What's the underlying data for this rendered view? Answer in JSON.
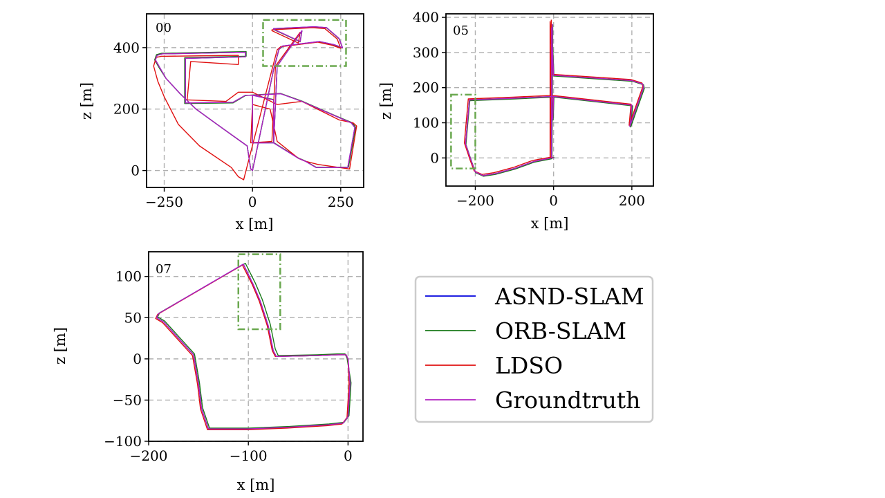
{
  "figure": {
    "legend": [
      {
        "name": "ASND-SLAM",
        "color": "#0000dd"
      },
      {
        "name": "ORB-SLAM",
        "color": "#1a7a1a"
      },
      {
        "name": "LDSO",
        "color": "#e01010"
      },
      {
        "name": "Groundtruth",
        "color": "#b020c0"
      }
    ],
    "roi_color": "#6aa84f"
  },
  "chart_data": [
    {
      "type": "line",
      "id": "00",
      "title": "00",
      "xlabel": "x [m]",
      "ylabel": "z [m]",
      "xlim": [
        -300,
        315
      ],
      "ylim": [
        -55,
        510
      ],
      "xticks": [
        -250,
        0,
        250
      ],
      "yticks": [
        0,
        200,
        400
      ],
      "xtick_labels": [
        "−250",
        "0",
        "250"
      ],
      "ytick_labels": [
        "0",
        "200",
        "400"
      ],
      "grid": true,
      "roi": {
        "x": [
          30,
          265
        ],
        "y": [
          340,
          490
        ]
      },
      "series": [
        {
          "name": "ASND-SLAM",
          "x": [
            0,
            -5,
            -15,
            -100,
            -160,
            -205,
            -245,
            -260,
            -275,
            -270,
            -255,
            -240,
            -20,
            -20,
            -190,
            -190,
            -55,
            -20,
            0,
            80,
            140,
            240,
            280,
            290,
            270,
            180,
            150,
            130,
            60,
            60,
            0,
            0,
            60,
            70,
            140,
            135,
            60,
            60,
            175,
            210,
            245,
            255,
            230,
            190,
            85,
            75,
            60,
            0
          ],
          "y": [
            0,
            5,
            80,
            150,
            200,
            250,
            300,
            330,
            360,
            375,
            380,
            380,
            385,
            370,
            365,
            220,
            222,
            245,
            245,
            250,
            225,
            175,
            155,
            140,
            10,
            10,
            30,
            40,
            90,
            230,
            245,
            90,
            90,
            340,
            455,
            420,
            460,
            462,
            468,
            465,
            430,
            400,
            410,
            420,
            405,
            395,
            330,
            0
          ]
        },
        {
          "name": "ORB-SLAM",
          "x": [
            0,
            -5,
            -15,
            -100,
            -160,
            -205,
            -245,
            -262,
            -277,
            -272,
            -257,
            -242,
            -18,
            -18,
            -192,
            -192,
            -55,
            -20,
            0,
            80,
            140,
            240,
            282,
            292,
            272,
            180,
            150,
            130,
            60,
            60,
            0,
            0,
            60,
            70,
            140,
            135,
            60,
            60,
            175,
            210,
            245,
            255,
            230,
            190,
            85,
            75,
            60,
            0
          ],
          "y": [
            0,
            5,
            80,
            150,
            200,
            250,
            300,
            330,
            360,
            377,
            382,
            382,
            387,
            372,
            367,
            218,
            220,
            244,
            246,
            251,
            226,
            176,
            156,
            141,
            11,
            11,
            31,
            41,
            91,
            231,
            246,
            91,
            91,
            341,
            454,
            419,
            459,
            461,
            467,
            464,
            429,
            399,
            409,
            419,
            404,
            394,
            329,
            0
          ]
        },
        {
          "name": "LDSO",
          "x": [
            -25,
            -40,
            -60,
            -150,
            -210,
            -250,
            -268,
            -280,
            -273,
            -258,
            -243,
            -40,
            -40,
            -175,
            -185,
            -75,
            -40,
            0,
            70,
            140,
            245,
            285,
            295,
            275,
            185,
            150,
            130,
            70,
            50,
            0,
            -5,
            55,
            65,
            135,
            130,
            55,
            55,
            170,
            205,
            240,
            250,
            225,
            185,
            80,
            70,
            55,
            -25
          ],
          "y": [
            -30,
            -20,
            10,
            80,
            150,
            240,
            290,
            340,
            368,
            372,
            372,
            375,
            345,
            355,
            230,
            225,
            255,
            255,
            215,
            225,
            165,
            155,
            145,
            5,
            20,
            30,
            40,
            95,
            200,
            215,
            90,
            95,
            340,
            450,
            415,
            455,
            458,
            465,
            462,
            428,
            398,
            408,
            418,
            403,
            393,
            328,
            -30
          ]
        },
        {
          "name": "Groundtruth",
          "x": [
            0,
            -5,
            -15,
            -100,
            -160,
            -205,
            -245,
            -260,
            -275,
            -270,
            -255,
            -240,
            -20,
            -20,
            -190,
            -190,
            -55,
            -20,
            0,
            80,
            140,
            240,
            280,
            290,
            270,
            180,
            150,
            130,
            60,
            60,
            0,
            0,
            60,
            70,
            140,
            135,
            60,
            60,
            175,
            210,
            245,
            255,
            230,
            190,
            85,
            75,
            60,
            0
          ],
          "y": [
            0,
            5,
            80,
            150,
            200,
            250,
            300,
            330,
            360,
            375,
            380,
            380,
            385,
            370,
            365,
            220,
            222,
            245,
            245,
            250,
            225,
            175,
            155,
            140,
            10,
            10,
            30,
            40,
            90,
            230,
            245,
            90,
            90,
            340,
            455,
            420,
            460,
            462,
            468,
            465,
            430,
            400,
            410,
            420,
            405,
            395,
            330,
            0
          ]
        }
      ]
    },
    {
      "type": "line",
      "id": "05",
      "title": "05",
      "xlabel": "x [m]",
      "ylabel": "z [m]",
      "xlim": [
        -275,
        255
      ],
      "ylim": [
        -80,
        410
      ],
      "xticks": [
        -200,
        0,
        200
      ],
      "yticks": [
        0,
        100,
        200,
        300,
        400
      ],
      "xtick_labels": [
        "−200",
        "0",
        "200"
      ],
      "ytick_labels": [
        "0",
        "100",
        "200",
        "300",
        "400"
      ],
      "grid": true,
      "roi": {
        "x": [
          -262,
          -200
        ],
        "y": [
          -30,
          180
        ]
      },
      "series": [
        {
          "name": "ASND-SLAM",
          "x": [
            0,
            -2,
            -5,
            -5,
            0,
            0,
            200,
            228,
            230,
            195,
            200,
            0,
            -2,
            0,
            -100,
            -215,
            -225,
            -210,
            -200,
            -180,
            -150,
            -100,
            -50,
            -5,
            -5,
            -3
          ],
          "y": [
            0,
            0,
            0,
            370,
            235,
            235,
            220,
            210,
            200,
            90,
            150,
            175,
            110,
            175,
            170,
            165,
            40,
            -10,
            -40,
            -50,
            -45,
            -30,
            -10,
            0,
            5,
            380
          ]
        },
        {
          "name": "ORB-SLAM",
          "x": [
            1,
            -1,
            -4,
            -4,
            1,
            1,
            202,
            230,
            232,
            197,
            202,
            1,
            -1,
            1,
            -99,
            -214,
            -224,
            -209,
            -199,
            -179,
            -149,
            -99,
            -49,
            -4,
            -4,
            -2
          ],
          "y": [
            1,
            1,
            1,
            368,
            233,
            233,
            218,
            208,
            198,
            88,
            148,
            173,
            108,
            173,
            168,
            163,
            38,
            -12,
            -42,
            -52,
            -47,
            -32,
            -12,
            -2,
            3,
            378
          ]
        },
        {
          "name": "LDSO",
          "x": [
            -3,
            -6,
            -9,
            -9,
            -3,
            -3,
            198,
            226,
            228,
            193,
            198,
            -3,
            -5,
            -3,
            -103,
            -218,
            -228,
            -213,
            -203,
            -183,
            -153,
            -103,
            -53,
            -8,
            -8,
            -6
          ],
          "y": [
            2,
            2,
            2,
            388,
            238,
            238,
            223,
            213,
            203,
            93,
            153,
            178,
            113,
            178,
            173,
            168,
            43,
            -7,
            -37,
            -47,
            -42,
            -27,
            -7,
            2,
            7,
            392
          ]
        },
        {
          "name": "Groundtruth",
          "x": [
            0,
            -2,
            -5,
            -5,
            0,
            0,
            200,
            228,
            230,
            195,
            200,
            0,
            -2,
            0,
            -100,
            -215,
            -225,
            -210,
            -200,
            -180,
            -150,
            -100,
            -50,
            -5,
            -5,
            -3
          ],
          "y": [
            0,
            0,
            0,
            370,
            235,
            235,
            220,
            210,
            200,
            90,
            150,
            175,
            110,
            175,
            170,
            165,
            40,
            -10,
            -40,
            -50,
            -45,
            -30,
            -10,
            0,
            5,
            380
          ]
        }
      ]
    },
    {
      "type": "line",
      "id": "07",
      "title": "07",
      "xlabel": "x [m]",
      "ylabel": "z [m]",
      "xlim": [
        -200,
        15
      ],
      "ylim": [
        -100,
        130
      ],
      "xticks": [
        -200,
        -100,
        0
      ],
      "yticks": [
        -100,
        -50,
        0,
        50,
        100
      ],
      "xtick_labels": [
        "−200",
        "−100",
        "0"
      ],
      "ytick_labels": [
        "−100",
        "−50",
        "0",
        "50",
        "100"
      ],
      "grid": true,
      "roi": {
        "x": [
          -110,
          -68
        ],
        "y": [
          36,
          127
        ]
      },
      "series": [
        {
          "name": "ASND-SLAM",
          "x": [
            0,
            -2,
            -10,
            -30,
            -72,
            -75,
            -80,
            -88,
            -95,
            -105,
            -190,
            -192,
            -185,
            -155,
            -150,
            -147,
            -140,
            -100,
            -60,
            -20,
            -5,
            0,
            2,
            0
          ],
          "y": [
            0,
            5,
            5,
            4,
            3,
            10,
            40,
            70,
            90,
            115,
            55,
            50,
            45,
            5,
            -30,
            -60,
            -85,
            -85,
            -83,
            -80,
            -78,
            -70,
            -30,
            0
          ]
        },
        {
          "name": "ORB-SLAM",
          "x": [
            -1,
            -3,
            -11,
            -31,
            -70,
            -73,
            -78,
            -86,
            -93,
            -103,
            -189,
            -191,
            -184,
            -154,
            -149,
            -146,
            -139,
            -99,
            -59,
            -19,
            -4,
            1,
            3,
            -1
          ],
          "y": [
            1,
            6,
            6,
            5,
            4,
            12,
            42,
            72,
            92,
            116,
            56,
            51,
            46,
            6,
            -29,
            -59,
            -84,
            -84,
            -82,
            -79,
            -77,
            -69,
            -29,
            1
          ]
        },
        {
          "name": "LDSO",
          "x": [
            0,
            -2,
            -10,
            -30,
            -73,
            -76,
            -81,
            -89,
            -96,
            -106,
            -191,
            -193,
            -186,
            -156,
            -151,
            -148,
            -141,
            -101,
            -61,
            -21,
            -6,
            -1,
            1,
            0
          ],
          "y": [
            0,
            5,
            5,
            4,
            3,
            10,
            40,
            70,
            90,
            114,
            54,
            49,
            44,
            4,
            -31,
            -61,
            -86,
            -86,
            -84,
            -81,
            -79,
            -71,
            -31,
            0
          ]
        },
        {
          "name": "Groundtruth",
          "x": [
            0,
            -2,
            -10,
            -30,
            -72,
            -75,
            -80,
            -88,
            -95,
            -105,
            -190,
            -192,
            -185,
            -155,
            -150,
            -147,
            -140,
            -100,
            -60,
            -20,
            -5,
            0,
            2,
            0
          ],
          "y": [
            0,
            5,
            5,
            4,
            3,
            10,
            40,
            70,
            90,
            115,
            55,
            50,
            45,
            5,
            -30,
            -60,
            -85,
            -85,
            -83,
            -80,
            -78,
            -70,
            -30,
            0
          ]
        }
      ]
    }
  ]
}
